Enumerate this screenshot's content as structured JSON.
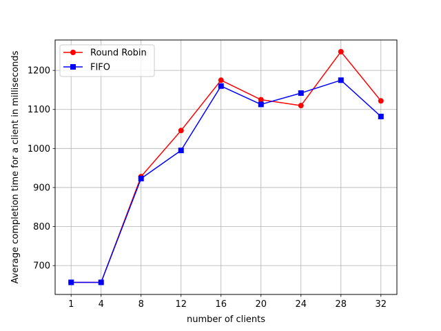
{
  "chart_data": {
    "type": "line",
    "title": "",
    "xlabel": "number of clients",
    "ylabel": "Average completion time for a client in milliseconds",
    "x": [
      1,
      4,
      8,
      12,
      16,
      20,
      24,
      28,
      32
    ],
    "xlim": [
      -0.6,
      33.6
    ],
    "ylim": [
      626,
      1278
    ],
    "yticks": [
      700,
      800,
      900,
      1000,
      1100,
      1200
    ],
    "grid": true,
    "legend_position": "top-left",
    "series": [
      {
        "name": "Round Robin",
        "color": "#ff0000",
        "marker": "circle",
        "values": [
          657,
          657,
          928,
          1046,
          1175,
          1125,
          1110,
          1248,
          1122
        ]
      },
      {
        "name": "FIFO",
        "color": "#0000ff",
        "marker": "square",
        "values": [
          657,
          657,
          923,
          995,
          1160,
          1113,
          1142,
          1175,
          1082
        ]
      }
    ]
  }
}
